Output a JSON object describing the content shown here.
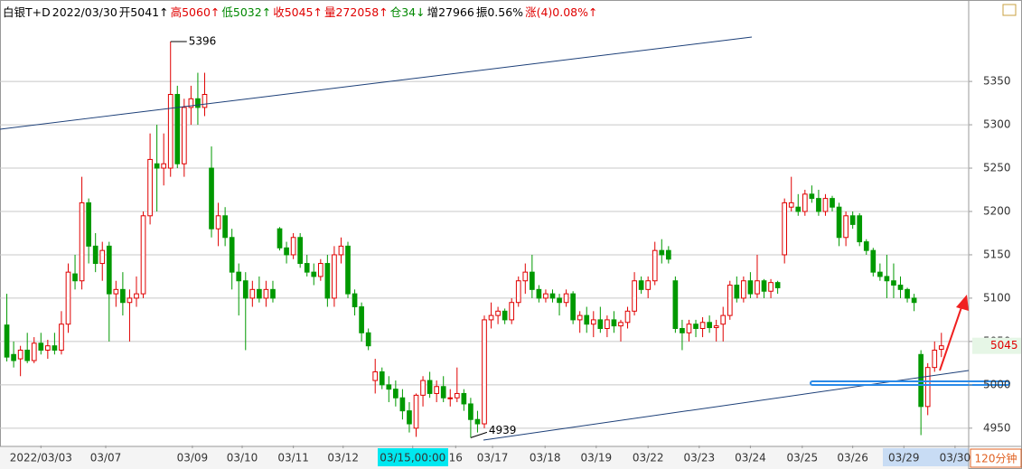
{
  "chart_data": {
    "type": "candlestick",
    "header": [
      {
        "text": "白银T+D",
        "color": "#000000"
      },
      {
        "text": "2022/03/30",
        "color": "#000000"
      },
      {
        "text": "开5041↑",
        "color": "#000000"
      },
      {
        "text": "高5060↑",
        "color": "#e00000"
      },
      {
        "text": "低5032↑",
        "color": "#008800"
      },
      {
        "text": "收5045↑",
        "color": "#e00000"
      },
      {
        "text": "量272058↑",
        "color": "#e00000"
      },
      {
        "text": "仓34↓",
        "color": "#008800"
      },
      {
        "text": "增27966",
        "color": "#000000"
      },
      {
        "text": "振0.56%",
        "color": "#000000"
      },
      {
        "text": "涨(4)0.08%↑",
        "color": "#e00000"
      }
    ],
    "period": "120分钟",
    "up_color": "#e00000",
    "down_color": "#009900",
    "ohlc": [
      [
        5069,
        5105,
        5027,
        5032
      ],
      [
        5035,
        5050,
        5020,
        5028
      ],
      [
        5030,
        5045,
        5010,
        5040
      ],
      [
        5040,
        5060,
        5025,
        5028
      ],
      [
        5028,
        5055,
        5025,
        5048
      ],
      [
        5048,
        5060,
        5035,
        5040
      ],
      [
        5040,
        5052,
        5030,
        5045
      ],
      [
        5045,
        5060,
        5035,
        5040
      ],
      [
        5040,
        5085,
        5035,
        5070
      ],
      [
        5070,
        5140,
        5060,
        5130
      ],
      [
        5128,
        5150,
        5110,
        5120
      ],
      [
        5120,
        5240,
        5110,
        5210
      ],
      [
        5210,
        5215,
        5140,
        5160
      ],
      [
        5160,
        5175,
        5130,
        5140
      ],
      [
        5140,
        5165,
        5120,
        5155
      ],
      [
        5160,
        5165,
        5050,
        5105
      ],
      [
        5105,
        5120,
        5090,
        5110
      ],
      [
        5110,
        5130,
        5080,
        5095
      ],
      [
        5095,
        5110,
        5050,
        5100
      ],
      [
        5100,
        5125,
        5090,
        5105
      ],
      [
        5105,
        5200,
        5100,
        5195
      ],
      [
        5195,
        5290,
        5185,
        5260
      ],
      [
        5255,
        5300,
        5200,
        5250
      ],
      [
        5250,
        5290,
        5230,
        5255
      ],
      [
        5250,
        5396,
        5240,
        5335
      ],
      [
        5335,
        5345,
        5250,
        5255
      ],
      [
        5255,
        5330,
        5240,
        5320
      ],
      [
        5320,
        5345,
        5300,
        5330
      ],
      [
        5330,
        5360,
        5300,
        5320
      ],
      [
        5320,
        5360,
        5310,
        5335
      ],
      [
        5250,
        5275,
        5170,
        5180
      ],
      [
        5180,
        5210,
        5160,
        5195
      ],
      [
        5195,
        5205,
        5160,
        5170
      ],
      [
        5170,
        5180,
        5110,
        5130
      ],
      [
        5130,
        5140,
        5080,
        5120
      ],
      [
        5120,
        5130,
        5040,
        5100
      ],
      [
        5100,
        5120,
        5090,
        5110
      ],
      [
        5110,
        5125,
        5095,
        5100
      ],
      [
        5100,
        5120,
        5090,
        5110
      ],
      [
        5110,
        5120,
        5095,
        5100
      ],
      [
        5180,
        5182,
        5155,
        5158
      ],
      [
        5158,
        5165,
        5140,
        5150
      ],
      [
        5150,
        5175,
        5145,
        5170
      ],
      [
        5170,
        5175,
        5135,
        5140
      ],
      [
        5140,
        5150,
        5125,
        5130
      ],
      [
        5130,
        5140,
        5115,
        5125
      ],
      [
        5125,
        5145,
        5120,
        5140
      ],
      [
        5140,
        5150,
        5090,
        5100
      ],
      [
        5100,
        5160,
        5090,
        5150
      ],
      [
        5150,
        5170,
        5140,
        5160
      ],
      [
        5160,
        5165,
        5100,
        5105
      ],
      [
        5105,
        5110,
        5080,
        5090
      ],
      [
        5090,
        5095,
        5050,
        5060
      ],
      [
        5060,
        5065,
        5040,
        5045
      ],
      [
        5005,
        5030,
        4990,
        5015
      ],
      [
        5015,
        5020,
        4995,
        5000
      ],
      [
        5000,
        5010,
        4980,
        4995
      ],
      [
        4995,
        5005,
        4975,
        4985
      ],
      [
        4985,
        4995,
        4960,
        4970
      ],
      [
        4970,
        4980,
        4945,
        4955
      ],
      [
        4950,
        4990,
        4940,
        4988
      ],
      [
        4988,
        5010,
        4975,
        5005
      ],
      [
        5005,
        5015,
        4985,
        4990
      ],
      [
        4990,
        5005,
        4980,
        4998
      ],
      [
        4998,
        5010,
        4980,
        4985
      ],
      [
        4985,
        4995,
        4975,
        4985
      ],
      [
        4985,
        5020,
        4980,
        4990
      ],
      [
        4990,
        4995,
        4970,
        4978
      ],
      [
        4978,
        4985,
        4939,
        4960
      ],
      [
        4960,
        4970,
        4945,
        4955
      ],
      [
        4955,
        5080,
        4950,
        5075
      ],
      [
        5075,
        5095,
        5065,
        5080
      ],
      [
        5080,
        5090,
        5070,
        5085
      ],
      [
        5085,
        5088,
        5070,
        5075
      ],
      [
        5075,
        5100,
        5070,
        5095
      ],
      [
        5095,
        5125,
        5090,
        5120
      ],
      [
        5120,
        5140,
        5105,
        5130
      ],
      [
        5130,
        5150,
        5100,
        5110
      ],
      [
        5110,
        5115,
        5095,
        5100
      ],
      [
        5100,
        5110,
        5095,
        5105
      ],
      [
        5105,
        5110,
        5095,
        5100
      ],
      [
        5100,
        5105,
        5080,
        5095
      ],
      [
        5095,
        5110,
        5090,
        5105
      ],
      [
        5105,
        5108,
        5070,
        5075
      ],
      [
        5075,
        5085,
        5060,
        5080
      ],
      [
        5080,
        5090,
        5060,
        5070
      ],
      [
        5070,
        5085,
        5055,
        5075
      ],
      [
        5075,
        5090,
        5060,
        5065
      ],
      [
        5065,
        5080,
        5055,
        5075
      ],
      [
        5075,
        5085,
        5060,
        5068
      ],
      [
        5068,
        5075,
        5050,
        5072
      ],
      [
        5072,
        5090,
        5065,
        5085
      ],
      [
        5085,
        5130,
        5080,
        5120
      ],
      [
        5120,
        5125,
        5105,
        5110
      ],
      [
        5110,
        5125,
        5100,
        5120
      ],
      [
        5120,
        5165,
        5115,
        5155
      ],
      [
        5155,
        5168,
        5140,
        5150
      ],
      [
        5155,
        5160,
        5140,
        5145
      ],
      [
        5120,
        5125,
        5060,
        5065
      ],
      [
        5065,
        5075,
        5040,
        5060
      ],
      [
        5060,
        5075,
        5050,
        5070
      ],
      [
        5070,
        5075,
        5055,
        5065
      ],
      [
        5065,
        5078,
        5055,
        5072
      ],
      [
        5072,
        5080,
        5060,
        5066
      ],
      [
        5066,
        5075,
        5050,
        5068
      ],
      [
        5070,
        5090,
        5050,
        5080
      ],
      [
        5080,
        5120,
        5075,
        5115
      ],
      [
        5115,
        5125,
        5095,
        5100
      ],
      [
        5100,
        5125,
        5095,
        5120
      ],
      [
        5120,
        5130,
        5100,
        5105
      ],
      [
        5105,
        5150,
        5100,
        5120
      ],
      [
        5120,
        5122,
        5100,
        5108
      ],
      [
        5108,
        5122,
        5100,
        5118
      ],
      [
        5118,
        5120,
        5105,
        5112
      ],
      [
        5150,
        5215,
        5140,
        5210
      ],
      [
        5205,
        5240,
        5200,
        5210
      ],
      [
        5205,
        5220,
        5195,
        5200
      ],
      [
        5200,
        5225,
        5195,
        5220
      ],
      [
        5220,
        5230,
        5210,
        5215
      ],
      [
        5215,
        5225,
        5195,
        5200
      ],
      [
        5200,
        5220,
        5195,
        5215
      ],
      [
        5215,
        5218,
        5200,
        5205
      ],
      [
        5205,
        5210,
        5160,
        5170
      ],
      [
        5170,
        5200,
        5160,
        5195
      ],
      [
        5195,
        5200,
        5180,
        5185
      ],
      [
        5195,
        5198,
        5160,
        5165
      ],
      [
        5165,
        5168,
        5150,
        5155
      ],
      [
        5155,
        5158,
        5125,
        5130
      ],
      [
        5130,
        5140,
        5120,
        5125
      ],
      [
        5125,
        5150,
        5100,
        5120
      ],
      [
        5120,
        5140,
        5100,
        5115
      ],
      [
        5115,
        5125,
        5100,
        5110
      ],
      [
        5110,
        5112,
        5095,
        5100
      ],
      [
        5100,
        5105,
        5085,
        5095
      ],
      [
        5035,
        5040,
        4942,
        4975
      ],
      [
        4975,
        5025,
        4965,
        5020
      ],
      [
        5020,
        5050,
        5015,
        5040
      ],
      [
        5041,
        5060,
        5032,
        5045
      ]
    ],
    "annotations": [
      5396,
      4939
    ],
    "last_price": 5045,
    "xlim": [
      -1,
      141
    ],
    "xticks": [
      {
        "value": 5,
        "label": "2022/03/03"
      },
      {
        "value": 14.5,
        "label": "03/07"
      },
      {
        "value": 27.2,
        "label": "03/09"
      },
      {
        "value": 34.5,
        "label": "03/10"
      },
      {
        "value": 42,
        "label": "03/11"
      },
      {
        "value": 49.3,
        "label": "03/12"
      },
      {
        "value": 59.5,
        "label": "03/15,00:00"
      },
      {
        "value": 65.8,
        "label": "16"
      },
      {
        "value": 71.2,
        "label": "03/17"
      },
      {
        "value": 78.9,
        "label": "03/18"
      },
      {
        "value": 86.4,
        "label": "03/19"
      },
      {
        "value": 94,
        "label": "03/22"
      },
      {
        "value": 101.5,
        "label": "03/23"
      },
      {
        "value": 109,
        "label": "03/24"
      },
      {
        "value": 116.6,
        "label": "03/25"
      },
      {
        "value": 124,
        "label": "03/26"
      },
      {
        "value": 131.5,
        "label": "03/29"
      },
      {
        "value": 139,
        "label": "03/30"
      }
    ],
    "ylim": [
      4930,
      5421
    ],
    "yticks": [
      4950,
      5000,
      5050,
      5100,
      5150,
      5200,
      5250,
      5300,
      5350
    ],
    "grid": true
  }
}
